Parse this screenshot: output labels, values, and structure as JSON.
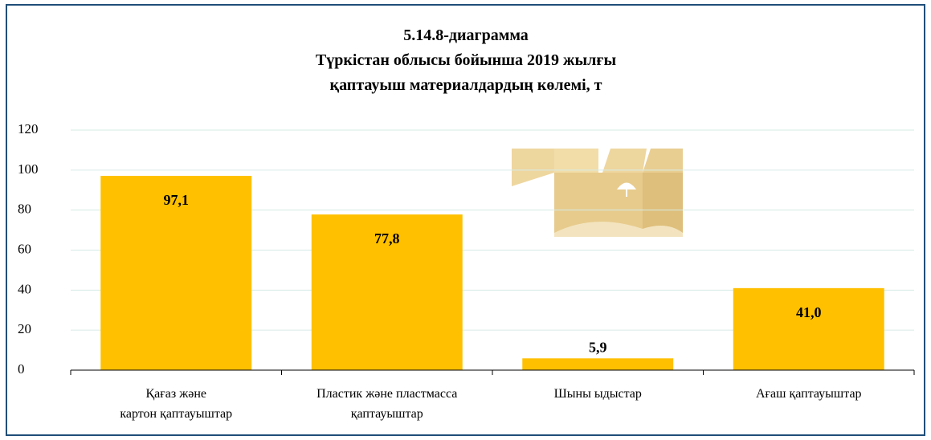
{
  "chart_data": {
    "type": "bar",
    "title": "5.14.8-диаграмма\nТүркістан облысы бойынша 2019 жылғы\nқаптауыш материалдардың көлемі, т",
    "categories": [
      "Қағаз және\nкартон қаптауыштар",
      "Пластик және пластмасса\nқаптауыштар",
      "Шыны ыдыстар",
      "Ағаш қаптауыштар"
    ],
    "values": [
      97.1,
      77.8,
      5.9,
      41.0
    ],
    "value_labels": [
      "97,1",
      "77,8",
      "5,9",
      "41,0"
    ],
    "color": "#ffc000",
    "ylim": [
      0,
      120
    ],
    "yticks": [
      0,
      20,
      40,
      60,
      80,
      100,
      120
    ],
    "grid": true
  }
}
